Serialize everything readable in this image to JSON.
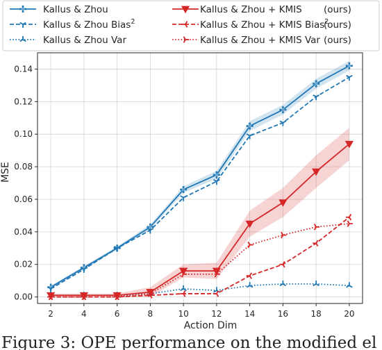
{
  "chart_data": {
    "type": "line",
    "xlabel": "Action Dim",
    "ylabel": "MSE",
    "x": [
      2,
      4,
      6,
      8,
      10,
      12,
      14,
      16,
      18,
      20
    ],
    "xticks": [
      "2",
      "4",
      "6",
      "8",
      "10",
      "12",
      "14",
      "16",
      "18",
      "20"
    ],
    "yticks": [
      "0.00",
      "0.02",
      "0.04",
      "0.06",
      "0.08",
      "0.10",
      "0.12",
      "0.14"
    ],
    "xlim": [
      1.2,
      20.8
    ],
    "ylim": [
      -0.004,
      0.15
    ],
    "grid": true,
    "legend_position": "top",
    "series": [
      {
        "name": "Kallus & Zhou",
        "name_sup": "",
        "suffix": "",
        "color": "#1f77b4",
        "dash": "solid",
        "marker": "plus",
        "values": [
          0.006,
          0.018,
          0.03,
          0.043,
          0.066,
          0.075,
          0.105,
          0.115,
          0.131,
          0.142
        ],
        "band": [
          0.001,
          0.001,
          0.001,
          0.0015,
          0.002,
          0.0025,
          0.003,
          0.003,
          0.003,
          0.003
        ]
      },
      {
        "name": "Kallus & Zhou Bias",
        "name_sup": "2",
        "suffix": "",
        "color": "#1f77b4",
        "dash": "dashed",
        "marker": "tri_down",
        "values": [
          0.005,
          0.017,
          0.03,
          0.041,
          0.061,
          0.071,
          0.099,
          0.107,
          0.123,
          0.135
        ],
        "band": null
      },
      {
        "name": "Kallus & Zhou Var",
        "name_sup": "",
        "suffix": "",
        "color": "#1f77b4",
        "dash": "dotted",
        "marker": "tri_up",
        "values": [
          0.001,
          0.001,
          0.001,
          0.002,
          0.005,
          0.004,
          0.007,
          0.008,
          0.008,
          0.007
        ],
        "band": null
      },
      {
        "name": "Kallus & Zhou + KMIS",
        "name_sup": "",
        "suffix": "(ours)",
        "color": "#d62728",
        "dash": "solid",
        "marker": "triangle_down",
        "values": [
          0.001,
          0.001,
          0.001,
          0.003,
          0.016,
          0.016,
          0.045,
          0.058,
          0.077,
          0.094
        ],
        "band": [
          0.001,
          0.001,
          0.001,
          0.003,
          0.004,
          0.005,
          0.008,
          0.009,
          0.01,
          0.01
        ]
      },
      {
        "name": "Kallus & Zhou + KMIS Bias",
        "name_sup": "2",
        "suffix": "(ours)",
        "color": "#d62728",
        "dash": "dashed",
        "marker": "tri_left",
        "values": [
          0.0,
          0.0,
          0.0,
          0.001,
          0.002,
          0.002,
          0.013,
          0.02,
          0.033,
          0.049
        ],
        "band": null
      },
      {
        "name": "Kallus & Zhou + KMIS Var",
        "name_sup": "",
        "suffix": "(ours)",
        "color": "#d62728",
        "dash": "dotted",
        "marker": "tri_right",
        "values": [
          0.0,
          0.0,
          0.0,
          0.002,
          0.014,
          0.014,
          0.032,
          0.038,
          0.043,
          0.045
        ],
        "band": null
      }
    ]
  },
  "caption": {
    "text": "Figure 3: OPE performance on the modified el"
  }
}
